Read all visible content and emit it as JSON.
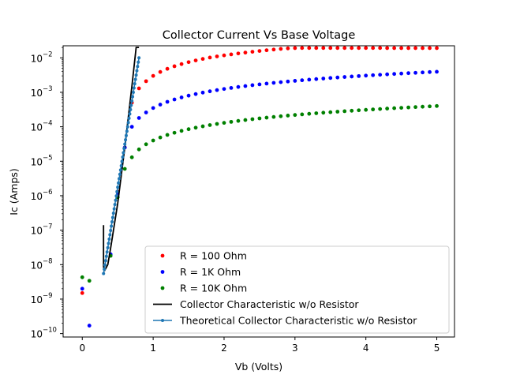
{
  "chart_data": {
    "type": "scatter",
    "title": "Collector Current Vs Base Voltage",
    "xlabel": "Vb (Volts)",
    "ylabel": "Ic (Amps)",
    "xlim": [
      -0.27,
      5.25
    ],
    "ylim_log10": [
      -10.1,
      -1.65
    ],
    "y_scale": "log",
    "x_ticks": [
      {
        "value": 0,
        "label": "0"
      },
      {
        "value": 1,
        "label": "1"
      },
      {
        "value": 2,
        "label": "2"
      },
      {
        "value": 3,
        "label": "3"
      },
      {
        "value": 4,
        "label": "4"
      },
      {
        "value": 5,
        "label": "5"
      }
    ],
    "y_ticks": [
      {
        "exp": -10,
        "label": "10",
        "sup": "−10"
      },
      {
        "exp": -9,
        "label": "10",
        "sup": "−9"
      },
      {
        "exp": -8,
        "label": "10",
        "sup": "−8"
      },
      {
        "exp": -7,
        "label": "10",
        "sup": "−7"
      },
      {
        "exp": -6,
        "label": "10",
        "sup": "−6"
      },
      {
        "exp": -5,
        "label": "10",
        "sup": "−5"
      },
      {
        "exp": -4,
        "label": "10",
        "sup": "−4"
      },
      {
        "exp": -3,
        "label": "10",
        "sup": "−3"
      },
      {
        "exp": -2,
        "label": "10",
        "sup": "−2"
      }
    ],
    "grid": false,
    "legend_position": "lower-right",
    "series": [
      {
        "name": "R = 100 Ohm",
        "kind": "scatter",
        "color": "#ff0000",
        "points": [
          [
            0.0,
            1.5e-09
          ],
          [
            0.5,
            1.3e-06
          ],
          [
            0.6,
            2.5e-05
          ],
          [
            0.7,
            0.0005
          ],
          [
            0.8,
            0.0013
          ],
          [
            0.9,
            0.0021
          ],
          [
            1.0,
            0.003
          ],
          [
            1.1,
            0.0039
          ],
          [
            1.2,
            0.0048
          ],
          [
            1.3,
            0.0057
          ],
          [
            1.4,
            0.0066
          ],
          [
            1.5,
            0.0075
          ],
          [
            1.6,
            0.0084
          ],
          [
            1.7,
            0.0093
          ],
          [
            1.8,
            0.0102
          ],
          [
            1.9,
            0.011
          ],
          [
            2.0,
            0.0118
          ],
          [
            2.1,
            0.0126
          ],
          [
            2.2,
            0.0134
          ],
          [
            2.3,
            0.0142
          ],
          [
            2.4,
            0.015
          ],
          [
            2.5,
            0.0158
          ],
          [
            2.6,
            0.0166
          ],
          [
            2.7,
            0.0174
          ],
          [
            2.8,
            0.0182
          ],
          [
            2.9,
            0.0188
          ],
          [
            3.0,
            0.0192
          ],
          [
            3.1,
            0.0193
          ],
          [
            3.2,
            0.0193
          ],
          [
            3.3,
            0.0193
          ],
          [
            3.4,
            0.0193
          ],
          [
            3.5,
            0.0193
          ],
          [
            3.6,
            0.0193
          ],
          [
            3.7,
            0.0193
          ],
          [
            3.8,
            0.0193
          ],
          [
            3.9,
            0.0193
          ],
          [
            4.0,
            0.0193
          ],
          [
            4.1,
            0.0193
          ],
          [
            4.2,
            0.0193
          ],
          [
            4.3,
            0.0192
          ],
          [
            4.4,
            0.0192
          ],
          [
            4.5,
            0.0192
          ],
          [
            4.6,
            0.0192
          ],
          [
            4.7,
            0.0192
          ],
          [
            4.8,
            0.0192
          ],
          [
            4.9,
            0.0192
          ],
          [
            5.0,
            0.0192
          ]
        ]
      },
      {
        "name": "R = 1K Ohm",
        "kind": "scatter",
        "color": "#0000ff",
        "points": [
          [
            0.0,
            2e-09
          ],
          [
            0.1,
            1.7e-10
          ],
          [
            0.4,
            2e-08
          ],
          [
            0.5,
            1.2e-06
          ],
          [
            0.6,
            2.5e-05
          ],
          [
            0.7,
            0.0001
          ],
          [
            0.8,
            0.00018
          ],
          [
            0.9,
            0.00026
          ],
          [
            1.0,
            0.00035
          ],
          [
            1.1,
            0.00044
          ],
          [
            1.2,
            0.00053
          ],
          [
            1.3,
            0.00062
          ],
          [
            1.4,
            0.00071
          ],
          [
            1.5,
            0.0008
          ],
          [
            1.6,
            0.00089
          ],
          [
            1.7,
            0.00098
          ],
          [
            1.8,
            0.00107
          ],
          [
            1.9,
            0.00116
          ],
          [
            2.0,
            0.00125
          ],
          [
            2.1,
            0.00134
          ],
          [
            2.2,
            0.00143
          ],
          [
            2.3,
            0.00152
          ],
          [
            2.4,
            0.00161
          ],
          [
            2.5,
            0.0017
          ],
          [
            2.6,
            0.00179
          ],
          [
            2.7,
            0.00188
          ],
          [
            2.8,
            0.00197
          ],
          [
            2.9,
            0.00206
          ],
          [
            3.0,
            0.00215
          ],
          [
            3.1,
            0.00224
          ],
          [
            3.2,
            0.00233
          ],
          [
            3.3,
            0.00242
          ],
          [
            3.4,
            0.00251
          ],
          [
            3.5,
            0.0026
          ],
          [
            3.6,
            0.00269
          ],
          [
            3.7,
            0.00278
          ],
          [
            3.8,
            0.00287
          ],
          [
            3.9,
            0.00296
          ],
          [
            4.0,
            0.00305
          ],
          [
            4.1,
            0.00314
          ],
          [
            4.2,
            0.00323
          ],
          [
            4.3,
            0.00332
          ],
          [
            4.4,
            0.00341
          ],
          [
            4.5,
            0.0035
          ],
          [
            4.6,
            0.00359
          ],
          [
            4.7,
            0.00368
          ],
          [
            4.8,
            0.00377
          ],
          [
            4.9,
            0.00386
          ],
          [
            5.0,
            0.00395
          ]
        ]
      },
      {
        "name": "R = 10K Ohm",
        "kind": "scatter",
        "color": "#008000",
        "points": [
          [
            0.0,
            4.3e-09
          ],
          [
            0.1,
            3.4e-09
          ],
          [
            0.4,
            1.8e-08
          ],
          [
            0.5,
            9e-07
          ],
          [
            0.6,
            6e-06
          ],
          [
            0.7,
            1.3e-05
          ],
          [
            0.8,
            2.2e-05
          ],
          [
            0.9,
            3.1e-05
          ],
          [
            1.0,
            4e-05
          ],
          [
            1.1,
            4.9e-05
          ],
          [
            1.2,
            5.8e-05
          ],
          [
            1.3,
            6.7e-05
          ],
          [
            1.4,
            7.6e-05
          ],
          [
            1.5,
            8.5e-05
          ],
          [
            1.6,
            9.4e-05
          ],
          [
            1.7,
            0.000103
          ],
          [
            1.8,
            0.000112
          ],
          [
            1.9,
            0.000121
          ],
          [
            2.0,
            0.00013
          ],
          [
            2.1,
            0.000139
          ],
          [
            2.2,
            0.000148
          ],
          [
            2.3,
            0.000157
          ],
          [
            2.4,
            0.000166
          ],
          [
            2.5,
            0.000175
          ],
          [
            2.6,
            0.000184
          ],
          [
            2.7,
            0.000193
          ],
          [
            2.8,
            0.000202
          ],
          [
            2.9,
            0.000211
          ],
          [
            3.0,
            0.00022
          ],
          [
            3.1,
            0.000229
          ],
          [
            3.2,
            0.000238
          ],
          [
            3.3,
            0.000247
          ],
          [
            3.4,
            0.000256
          ],
          [
            3.5,
            0.000265
          ],
          [
            3.6,
            0.000274
          ],
          [
            3.7,
            0.000283
          ],
          [
            3.8,
            0.000292
          ],
          [
            3.9,
            0.000301
          ],
          [
            4.0,
            0.00031
          ],
          [
            4.1,
            0.000319
          ],
          [
            4.2,
            0.000328
          ],
          [
            4.3,
            0.000337
          ],
          [
            4.4,
            0.000346
          ],
          [
            4.5,
            0.000355
          ],
          [
            4.6,
            0.000364
          ],
          [
            4.7,
            0.000373
          ],
          [
            4.8,
            0.000382
          ],
          [
            4.9,
            0.000391
          ],
          [
            5.0,
            0.0004
          ]
        ]
      },
      {
        "name": "Collector Characteristic w/o Resistor",
        "kind": "line",
        "color": "#000000",
        "points": [
          [
            0.3,
            1.4e-07
          ],
          [
            0.3,
            8.5e-09
          ],
          [
            0.32,
            7e-09
          ],
          [
            0.36,
            1e-08
          ],
          [
            0.4,
            3e-08
          ],
          [
            0.5,
            6e-07
          ],
          [
            0.6,
            2.5e-05
          ],
          [
            0.7,
            0.0015
          ],
          [
            0.76,
            0.02
          ],
          [
            0.8,
            0.02
          ]
        ]
      },
      {
        "name": "Theoretical Collector Characteristic w/o Resistor",
        "kind": "line-marker",
        "color": "#1f77b4",
        "v_start": 0.3,
        "v_end": 0.8,
        "v_step": 0.01,
        "ic_at_start": 5.5e-09,
        "ic_at_end": 0.01
      }
    ]
  }
}
